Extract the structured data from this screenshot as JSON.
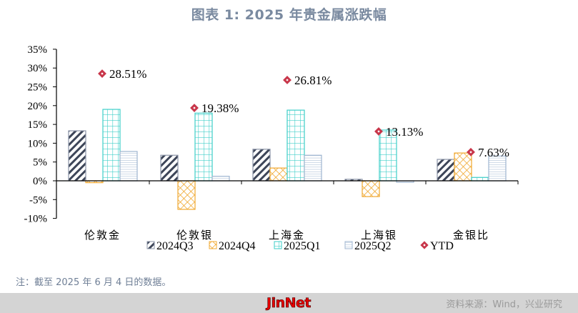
{
  "title": "图表 1:  2025 年贵金属涨跌幅",
  "note": "注：截至 2025 年 6 月 4 日的数据。",
  "footer": {
    "brand": "JinNet",
    "source": "资料来源：Wind，兴业研究"
  },
  "colors": {
    "q3_2024": "#3d4558",
    "q4_2024": "#f0a830",
    "q1_2025": "#3ecfc9",
    "q2_2025": "#9fb6d0",
    "ytd": "#c8364a",
    "axis": "#000000"
  },
  "chart_data": {
    "type": "bar",
    "title": "图表 1:  2025 年贵金属涨跌幅",
    "xlabel": "",
    "ylabel": "",
    "ylim": [
      -0.1,
      0.35
    ],
    "yticks": [
      "35%",
      "30%",
      "25%",
      "20%",
      "15%",
      "10%",
      "5%",
      "0%",
      "-5%",
      "-10%"
    ],
    "categories": [
      "伦敦金",
      "伦敦银",
      "上海金",
      "上海银",
      "金银比"
    ],
    "series": [
      {
        "name": "2024Q3",
        "pattern": "diagonal-stripes",
        "values": [
          13.3,
          6.8,
          8.4,
          0.4,
          5.7
        ]
      },
      {
        "name": "2024Q4",
        "pattern": "crosshatch",
        "values": [
          -0.5,
          -7.6,
          3.4,
          -4.2,
          7.4
        ]
      },
      {
        "name": "2025Q1",
        "pattern": "grid",
        "values": [
          19.0,
          18.0,
          18.8,
          13.5,
          0.9
        ]
      },
      {
        "name": "2025Q2",
        "pattern": "horizontal-lines",
        "values": [
          7.8,
          1.2,
          6.8,
          -0.4,
          6.6
        ]
      },
      {
        "name": "YTD",
        "marker": "diamond",
        "values": [
          28.51,
          19.38,
          26.81,
          13.13,
          7.63
        ],
        "labels": [
          "28.51%",
          "19.38%",
          "26.81%",
          "13.13%",
          "7.63%"
        ]
      }
    ],
    "units": "%",
    "grid": false,
    "legend_position": "bottom"
  }
}
